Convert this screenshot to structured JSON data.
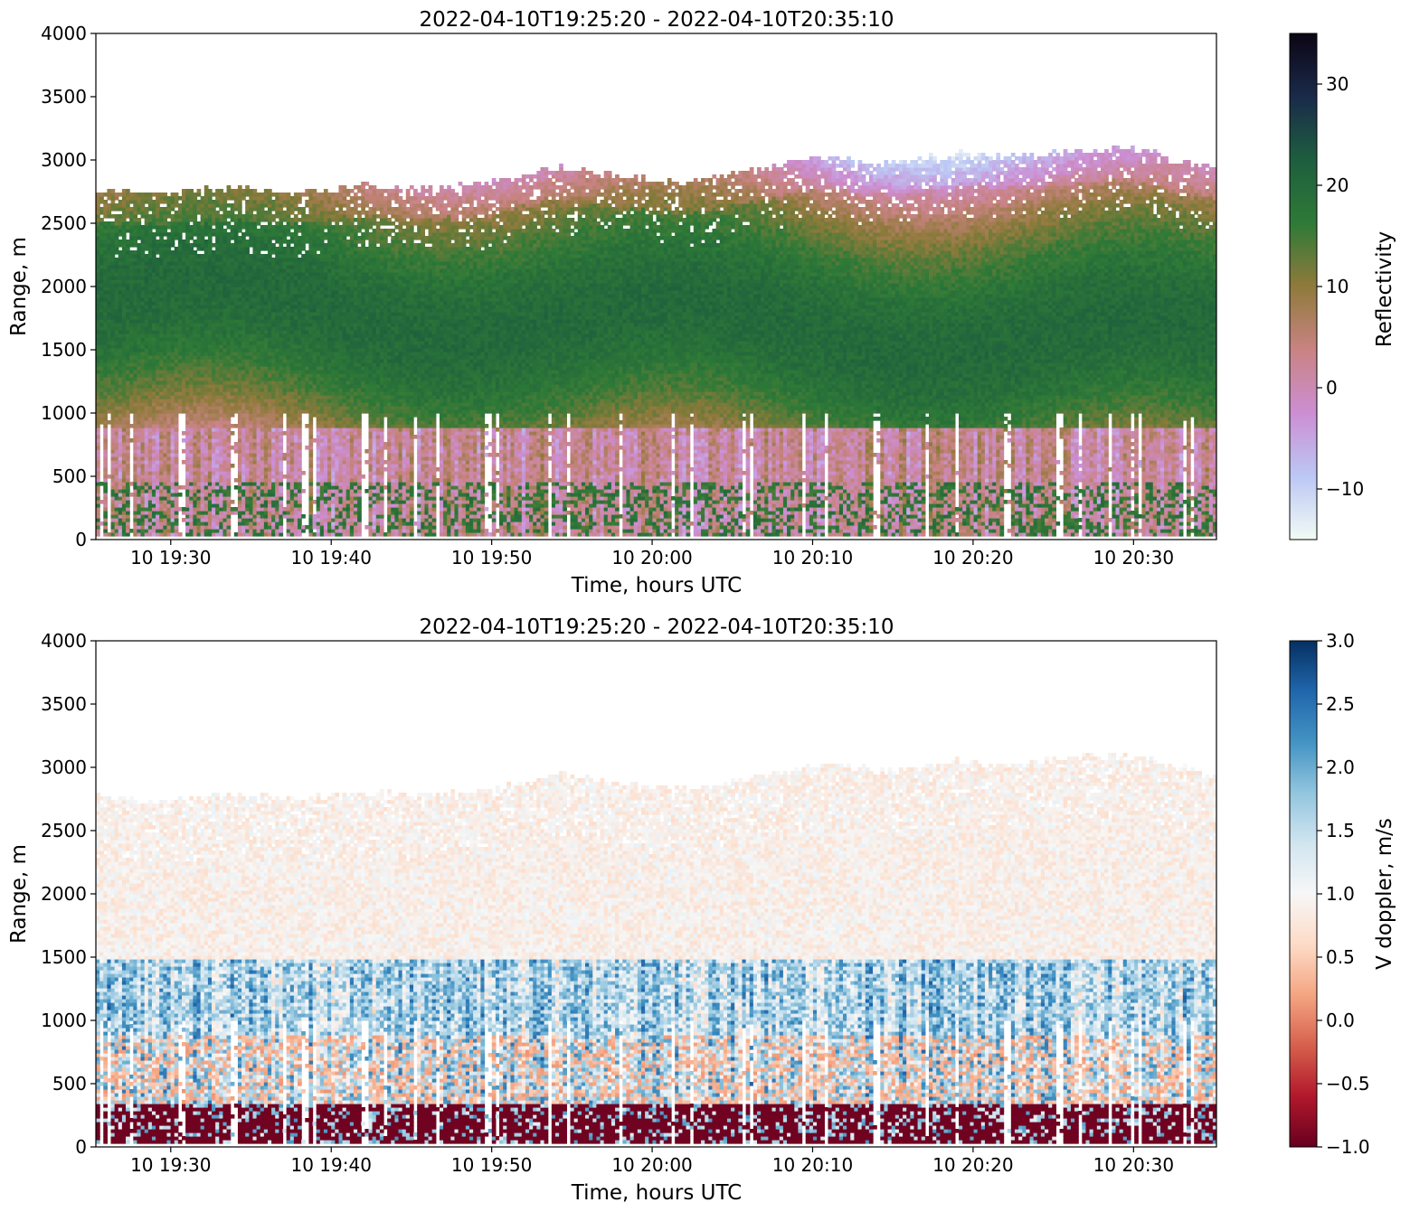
{
  "chart_data": [
    {
      "type": "heatmap",
      "title": "2022-04-10T19:25:20 - 2022-04-10T20:35:10",
      "xlabel": "Time, hours UTC",
      "ylabel": "Range, m",
      "xlim": [
        "2022-04-10T19:25:20",
        "2022-04-10T20:35:10"
      ],
      "ylim": [
        0,
        4000
      ],
      "x_ticks": [
        "10 19:30",
        "10 19:40",
        "10 19:50",
        "10 20:00",
        "10 20:10",
        "10 20:20",
        "10 20:30"
      ],
      "y_ticks": [
        "0",
        "500",
        "1000",
        "1500",
        "2000",
        "2500",
        "3000",
        "3500",
        "4000"
      ],
      "colorbar": {
        "label": "Reflectivity",
        "range": [
          -15,
          35
        ],
        "ticks": [
          "−10",
          "0",
          "10",
          "20",
          "30"
        ],
        "colormap": [
          "#f1fbf5",
          "#bcc7f4",
          "#cc8ed3",
          "#c98383",
          "#8f7a3b",
          "#2e7a37",
          "#1e5e3e",
          "#1a2a4a",
          "#0c0514"
        ]
      },
      "signal_top_m": [
        2800,
        2760,
        2820,
        2780,
        2830,
        2800,
        2850,
        2980,
        2900,
        2850,
        2950,
        3060,
        3000,
        3080,
        3050,
        3120,
        3100,
        2950
      ],
      "mean_peak_reflectivity": 18
    },
    {
      "type": "heatmap",
      "title": "2022-04-10T19:25:20 - 2022-04-10T20:35:10",
      "xlabel": "Time, hours UTC",
      "ylabel": "Range, m",
      "xlim": [
        "2022-04-10T19:25:20",
        "2022-04-10T20:35:10"
      ],
      "ylim": [
        0,
        4000
      ],
      "x_ticks": [
        "10 19:30",
        "10 19:40",
        "10 19:50",
        "10 20:00",
        "10 20:10",
        "10 20:20",
        "10 20:30"
      ],
      "y_ticks": [
        "0",
        "500",
        "1000",
        "1500",
        "2000",
        "2500",
        "3000",
        "3500",
        "4000"
      ],
      "colorbar": {
        "label": "V doppler, m/s",
        "range": [
          -1.0,
          3.0
        ],
        "ticks": [
          "−1.0",
          "−0.5",
          "0.0",
          "0.5",
          "1.0",
          "1.5",
          "2.0",
          "2.5",
          "3.0"
        ],
        "colormap": [
          "#67001f",
          "#b2182b",
          "#d6604d",
          "#f4a582",
          "#fddbc7",
          "#f7f7f7",
          "#d1e5f0",
          "#92c5de",
          "#4393c3",
          "#2166ac",
          "#053061"
        ]
      },
      "signal_top_m": [
        2800,
        2760,
        2820,
        2780,
        2830,
        2800,
        2850,
        2980,
        2900,
        2850,
        2950,
        3060,
        3000,
        3080,
        3050,
        3120,
        3100,
        2950
      ]
    }
  ]
}
